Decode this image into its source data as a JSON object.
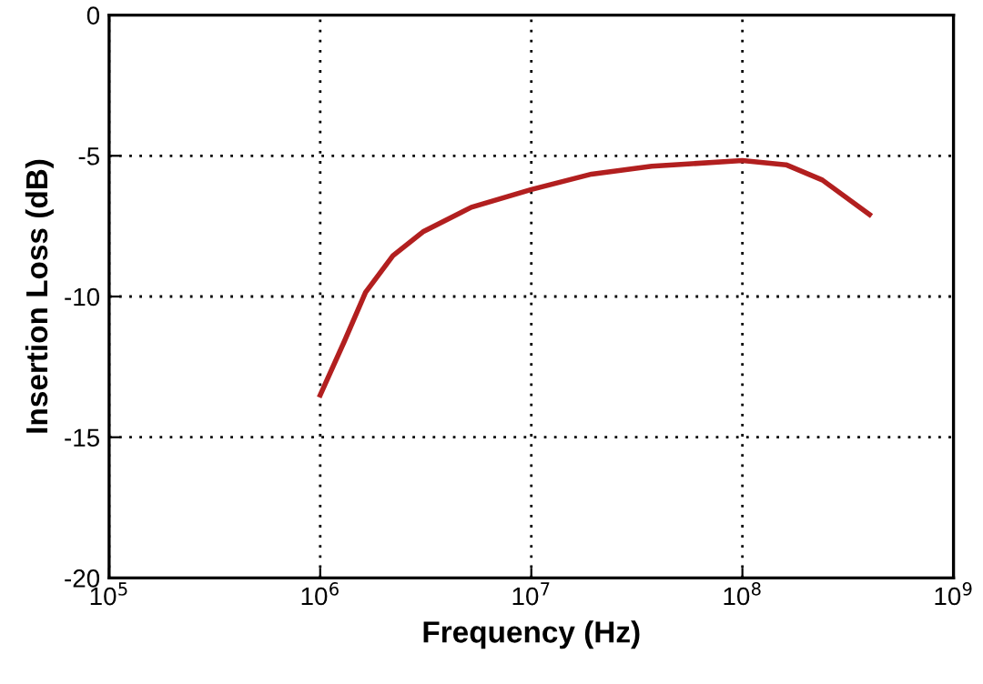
{
  "chart_data": {
    "type": "line",
    "xlabel": "Frequency (Hz)",
    "ylabel": "Insertion Loss (dB)",
    "log": "x",
    "xlim": [
      100000,
      1000000000
    ],
    "ylim": [
      -20,
      0
    ],
    "xticks": [
      {
        "value": 100000,
        "label": "10$^{5}$"
      },
      {
        "value": 1000000,
        "label": "10$^{6}$"
      },
      {
        "value": 10000000,
        "label": "10$^{7}$"
      },
      {
        "value": 100000000,
        "label": "10$^{8}$"
      },
      {
        "value": 1000000000,
        "label": "10$^{9}$"
      }
    ],
    "yticks": [
      -20,
      -15,
      -10,
      -5,
      0
    ],
    "grid": true,
    "line_style": "solid",
    "series": [
      {
        "color": "#b21f1f",
        "x": [
          1000000,
          1300000,
          1640000,
          2210000,
          3070000,
          5200000,
          10000000,
          19300000,
          37200000,
          100000000,
          161000000,
          239000000,
          400000000
        ],
        "values": [
          -13.5,
          -11.6,
          -9.85,
          -8.55,
          -7.7,
          -6.83,
          -6.2,
          -5.65,
          -5.37,
          -5.17,
          -5.32,
          -5.86,
          -7.09
        ]
      }
    ]
  }
}
